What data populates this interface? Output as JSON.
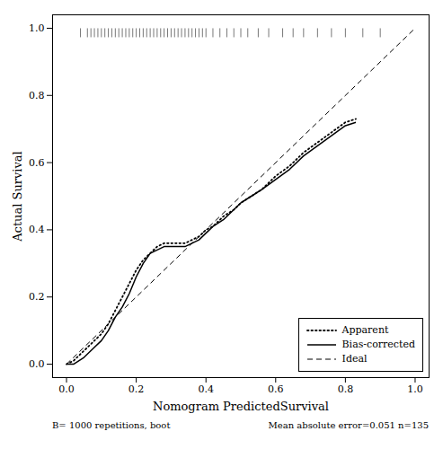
{
  "chart_data": {
    "type": "line",
    "xlabel": "Nomogram PredictedSurvival",
    "ylabel": "Actual Survival",
    "xlim": [
      -0.04,
      1.04
    ],
    "ylim": [
      -0.04,
      1.04
    ],
    "xticks": [
      {
        "value": 0.0,
        "label": "0.0"
      },
      0.2,
      0.4,
      0.6,
      0.8,
      {
        "value": 1.0,
        "label": "1.0"
      }
    ],
    "yticks": [
      {
        "value": 0.0,
        "label": "0.0"
      },
      0.2,
      0.4,
      0.6,
      0.8,
      {
        "value": 1.0,
        "label": "1.0"
      }
    ],
    "legend": "lower right",
    "annotations": [
      "B= 1000 repetitions, boot",
      "Mean absolute error=0.051 n=135"
    ],
    "series": [
      {
        "name": "Apparent",
        "color": "#000000",
        "line_style": "dotted",
        "x": [
          0.0,
          0.02,
          0.05,
          0.08,
          0.1,
          0.12,
          0.14,
          0.16,
          0.18,
          0.2,
          0.22,
          0.24,
          0.26,
          0.28,
          0.3,
          0.32,
          0.34,
          0.36,
          0.38,
          0.4,
          0.42,
          0.45,
          0.48,
          0.5,
          0.53,
          0.56,
          0.6,
          0.64,
          0.68,
          0.72,
          0.76,
          0.8,
          0.83
        ],
        "values": [
          0.0,
          0.01,
          0.04,
          0.07,
          0.09,
          0.12,
          0.16,
          0.2,
          0.24,
          0.28,
          0.31,
          0.33,
          0.35,
          0.36,
          0.36,
          0.36,
          0.36,
          0.37,
          0.38,
          0.4,
          0.41,
          0.44,
          0.46,
          0.48,
          0.5,
          0.52,
          0.56,
          0.59,
          0.63,
          0.66,
          0.69,
          0.72,
          0.73
        ]
      },
      {
        "name": "Bias-corrected",
        "color": "#000000",
        "line_style": "solid",
        "x": [
          0.0,
          0.02,
          0.05,
          0.08,
          0.1,
          0.12,
          0.14,
          0.16,
          0.18,
          0.2,
          0.22,
          0.24,
          0.26,
          0.28,
          0.3,
          0.32,
          0.34,
          0.36,
          0.38,
          0.4,
          0.42,
          0.45,
          0.48,
          0.5,
          0.53,
          0.56,
          0.6,
          0.64,
          0.68,
          0.72,
          0.76,
          0.8,
          0.83
        ],
        "values": [
          0.0,
          0.0,
          0.02,
          0.05,
          0.07,
          0.1,
          0.14,
          0.17,
          0.21,
          0.26,
          0.3,
          0.33,
          0.34,
          0.35,
          0.35,
          0.35,
          0.35,
          0.36,
          0.37,
          0.39,
          0.41,
          0.43,
          0.46,
          0.48,
          0.5,
          0.52,
          0.55,
          0.58,
          0.62,
          0.65,
          0.68,
          0.71,
          0.72
        ]
      },
      {
        "name": "Ideal",
        "color": "#000000",
        "line_style": "dashed",
        "x": [
          0.0,
          1.0
        ],
        "values": [
          0.0,
          1.0
        ]
      }
    ],
    "rug": {
      "x": [
        0.04,
        0.06,
        0.07,
        0.08,
        0.09,
        0.1,
        0.11,
        0.12,
        0.13,
        0.14,
        0.15,
        0.16,
        0.17,
        0.18,
        0.19,
        0.2,
        0.21,
        0.22,
        0.23,
        0.24,
        0.25,
        0.26,
        0.27,
        0.28,
        0.29,
        0.3,
        0.31,
        0.32,
        0.33,
        0.34,
        0.35,
        0.36,
        0.37,
        0.38,
        0.39,
        0.4,
        0.42,
        0.44,
        0.46,
        0.48,
        0.5,
        0.52,
        0.55,
        0.58,
        0.62,
        0.65,
        0.68,
        0.72,
        0.76,
        0.8,
        0.85,
        0.9
      ],
      "y": 1.0,
      "color": "#555555"
    }
  }
}
